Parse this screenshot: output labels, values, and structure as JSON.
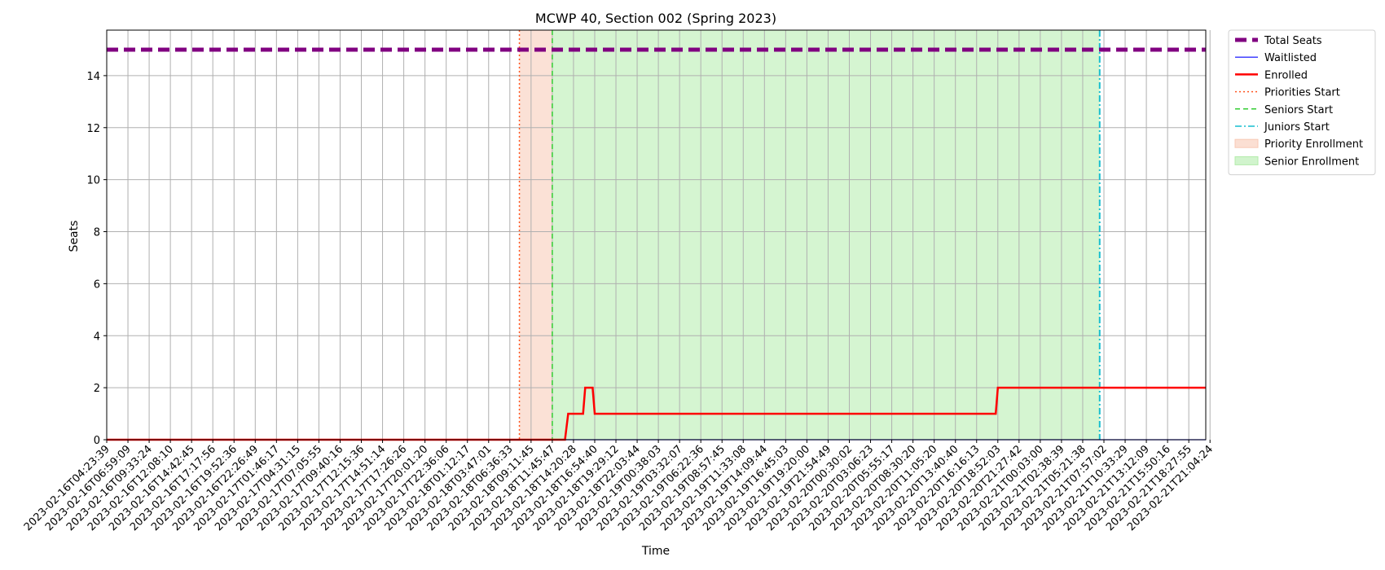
{
  "chart_data": {
    "type": "line",
    "title": "MCWP 40, Section 002 (Spring 2023)",
    "xlabel": "Time",
    "ylabel": "Seats",
    "ylim": [
      0,
      15.75
    ],
    "yticks": [
      0,
      2,
      4,
      6,
      8,
      10,
      12,
      14
    ],
    "grid": true,
    "legend_position": "outside-upper-right",
    "x_tick_labels": [
      "2023-02-16T04:23:39",
      "2023-02-16T06:59:09",
      "2023-02-16T09:33:24",
      "2023-02-16T12:08:10",
      "2023-02-16T14:42:45",
      "2023-02-16T17:17:56",
      "2023-02-16T19:52:36",
      "2023-02-16T22:26:49",
      "2023-02-17T01:46:17",
      "2023-02-17T04:31:15",
      "2023-02-17T07:05:55",
      "2023-02-17T09:40:16",
      "2023-02-17T12:15:36",
      "2023-02-17T14:51:14",
      "2023-02-17T17:26:26",
      "2023-02-17T20:01:20",
      "2023-02-17T22:36:06",
      "2023-02-18T01:12:17",
      "2023-02-18T03:47:01",
      "2023-02-18T06:36:33",
      "2023-02-18T09:11:45",
      "2023-02-18T11:45:47",
      "2023-02-18T14:20:28",
      "2023-02-18T16:54:40",
      "2023-02-18T19:29:12",
      "2023-02-18T22:03:44",
      "2023-02-19T00:38:03",
      "2023-02-19T03:32:07",
      "2023-02-19T06:22:36",
      "2023-02-19T08:57:45",
      "2023-02-19T11:33:08",
      "2023-02-19T14:09:44",
      "2023-02-19T16:45:03",
      "2023-02-19T19:20:00",
      "2023-02-19T21:54:49",
      "2023-02-20T00:30:02",
      "2023-02-20T03:06:23",
      "2023-02-20T05:55:17",
      "2023-02-20T08:30:20",
      "2023-02-20T11:05:20",
      "2023-02-20T13:40:40",
      "2023-02-20T16:16:13",
      "2023-02-20T18:52:03",
      "2023-02-20T21:27:42",
      "2023-02-21T00:03:00",
      "2023-02-21T02:38:39",
      "2023-02-21T05:21:38",
      "2023-02-21T07:57:02",
      "2023-02-21T10:33:29",
      "2023-02-21T13:12:09",
      "2023-02-21T15:50:16",
      "2023-02-21T18:27:55",
      "2023-02-21T21:04:24"
    ],
    "series": [
      {
        "name": "Total Seats",
        "color": "#800080",
        "style": "dashed-thick",
        "points": [
          [
            0,
            15
          ],
          [
            51.8,
            15
          ]
        ]
      },
      {
        "name": "Waitlisted",
        "color": "#0000ff",
        "style": "solid-thin",
        "points": [
          [
            0,
            0
          ],
          [
            51.8,
            0
          ]
        ]
      },
      {
        "name": "Enrolled",
        "color": "#ff0000",
        "style": "solid-thick",
        "points": [
          [
            0,
            0
          ],
          [
            21.6,
            0
          ],
          [
            21.75,
            1
          ],
          [
            22.45,
            1
          ],
          [
            22.55,
            2
          ],
          [
            22.9,
            2
          ],
          [
            23.0,
            1
          ],
          [
            41.9,
            1
          ],
          [
            42.0,
            2
          ],
          [
            51.8,
            2
          ]
        ]
      }
    ],
    "markers": [
      {
        "name": "Priorities Start",
        "x": 19.45,
        "color": "#ff5722",
        "style": "dotted"
      },
      {
        "name": "Seniors Start",
        "x": 21.0,
        "color": "#33cc33",
        "style": "dashed"
      },
      {
        "name": "Juniors Start",
        "x": 46.8,
        "color": "#17becf",
        "style": "dashdot"
      }
    ],
    "spans": [
      {
        "name": "Priority Enrollment",
        "x0": 19.45,
        "x1": 21.0,
        "color": "#f8c9b5"
      },
      {
        "name": "Senior Enrollment",
        "x0": 21.0,
        "x1": 46.8,
        "color": "#b3ecab"
      }
    ],
    "legend": [
      "Total Seats",
      "Waitlisted",
      "Enrolled",
      "Priorities Start",
      "Seniors Start",
      "Juniors Start",
      "Priority Enrollment",
      "Senior Enrollment"
    ]
  }
}
